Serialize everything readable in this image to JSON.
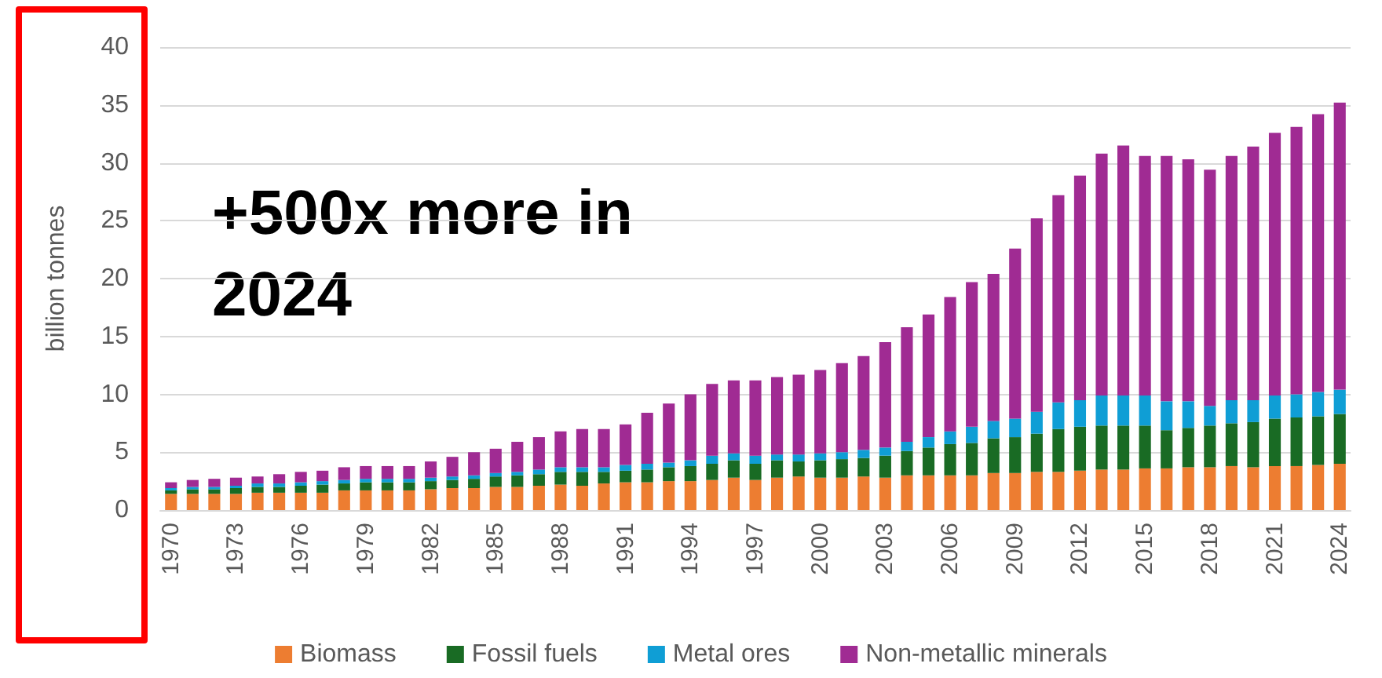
{
  "chart_data": {
    "type": "bar",
    "stacked": true,
    "ylabel": "billion tonnes",
    "annotations": [
      "+500x more in 2024"
    ],
    "categories": [
      "1970",
      null,
      null,
      "1973",
      null,
      null,
      "1976",
      null,
      null,
      "1979",
      null,
      null,
      "1982",
      null,
      null,
      "1985",
      null,
      null,
      "1988",
      null,
      null,
      "1991",
      null,
      null,
      "1994",
      null,
      null,
      "1997",
      null,
      null,
      "2000",
      null,
      null,
      "2003",
      null,
      null,
      "2006",
      null,
      null,
      "2009",
      null,
      null,
      "2012",
      null,
      null,
      "2015",
      null,
      null,
      "2018",
      null,
      null,
      "2021",
      null,
      null,
      "2024"
    ],
    "series": [
      {
        "name": "Biomass",
        "color": "#ed7d31",
        "values": [
          1.4,
          1.4,
          1.4,
          1.4,
          1.5,
          1.5,
          1.5,
          1.5,
          1.7,
          1.7,
          1.7,
          1.7,
          1.8,
          1.9,
          1.9,
          2.0,
          2.0,
          2.1,
          2.2,
          2.1,
          2.3,
          2.4,
          2.4,
          2.5,
          2.5,
          2.6,
          2.8,
          2.6,
          2.8,
          2.9,
          2.8,
          2.8,
          2.9,
          2.8,
          3.0,
          3.0,
          3.0,
          3.0,
          3.2,
          3.2,
          3.3,
          3.3,
          3.4,
          3.5,
          3.5,
          3.6,
          3.6,
          3.7,
          3.7,
          3.8,
          3.7,
          3.8,
          3.8,
          3.9,
          4.0
        ]
      },
      {
        "name": "Fossil fuels",
        "color": "#196b24",
        "values": [
          0.3,
          0.4,
          0.4,
          0.5,
          0.5,
          0.5,
          0.6,
          0.7,
          0.6,
          0.7,
          0.7,
          0.7,
          0.7,
          0.7,
          0.8,
          0.9,
          1.0,
          1.0,
          1.1,
          1.2,
          1.0,
          1.0,
          1.1,
          1.2,
          1.3,
          1.4,
          1.5,
          1.4,
          1.5,
          1.3,
          1.5,
          1.6,
          1.6,
          1.9,
          2.1,
          2.4,
          2.7,
          2.8,
          3.0,
          3.1,
          3.3,
          3.7,
          3.8,
          3.8,
          3.8,
          3.7,
          3.3,
          3.4,
          3.6,
          3.7,
          3.9,
          4.1,
          4.2,
          4.2,
          4.3
        ]
      },
      {
        "name": "Metal ores",
        "color": "#0f9ed5",
        "values": [
          0.2,
          0.2,
          0.2,
          0.2,
          0.3,
          0.3,
          0.3,
          0.3,
          0.3,
          0.3,
          0.3,
          0.3,
          0.3,
          0.3,
          0.3,
          0.3,
          0.3,
          0.4,
          0.4,
          0.4,
          0.4,
          0.5,
          0.5,
          0.4,
          0.5,
          0.7,
          0.6,
          0.7,
          0.5,
          0.6,
          0.6,
          0.6,
          0.7,
          0.7,
          0.8,
          0.9,
          1.1,
          1.4,
          1.5,
          1.6,
          1.9,
          2.3,
          2.3,
          2.6,
          2.6,
          2.6,
          2.5,
          2.3,
          1.7,
          2.0,
          1.9,
          2.0,
          2.0,
          2.1,
          2.1
        ]
      },
      {
        "name": "Non-metallic minerals",
        "color": "#a02b93",
        "values": [
          0.5,
          0.6,
          0.7,
          0.7,
          0.6,
          0.8,
          0.9,
          0.9,
          1.1,
          1.1,
          1.1,
          1.1,
          1.4,
          1.7,
          2.0,
          2.1,
          2.6,
          2.8,
          3.1,
          3.3,
          3.3,
          3.5,
          4.4,
          5.1,
          5.7,
          6.2,
          6.3,
          6.5,
          6.7,
          6.9,
          7.2,
          7.7,
          8.1,
          9.1,
          9.9,
          10.6,
          11.6,
          12.5,
          12.7,
          14.7,
          16.7,
          17.9,
          19.4,
          20.9,
          21.6,
          20.7,
          21.2,
          20.9,
          20.4,
          21.1,
          21.9,
          22.7,
          23.1,
          24.0,
          24.8
        ]
      }
    ],
    "ylim": [
      0,
      40
    ],
    "yticks": [
      0,
      5,
      10,
      15,
      20,
      25,
      30,
      35,
      40
    ],
    "grid": "y",
    "legend": "bottom"
  }
}
